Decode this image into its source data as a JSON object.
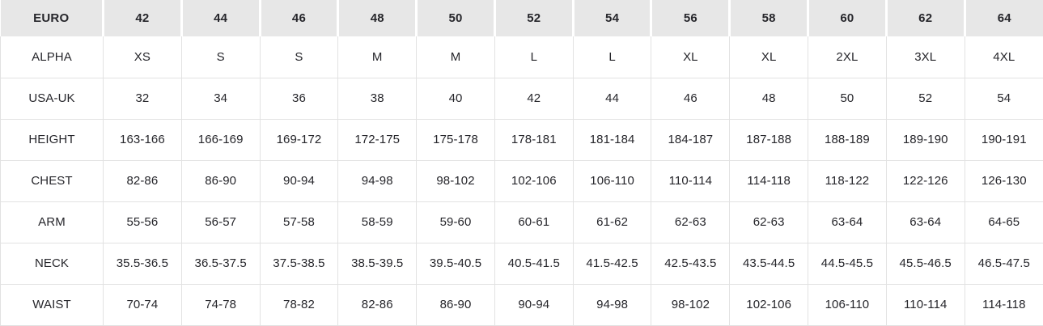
{
  "size_chart": {
    "header": {
      "label": "EURO",
      "values": [
        "42",
        "44",
        "46",
        "48",
        "50",
        "52",
        "54",
        "56",
        "58",
        "60",
        "62",
        "64"
      ]
    },
    "rows": [
      {
        "label": "ALPHA",
        "values": [
          "XS",
          "S",
          "S",
          "M",
          "M",
          "L",
          "L",
          "XL",
          "XL",
          "2XL",
          "3XL",
          "4XL"
        ]
      },
      {
        "label": "USA-UK",
        "values": [
          "32",
          "34",
          "36",
          "38",
          "40",
          "42",
          "44",
          "46",
          "48",
          "50",
          "52",
          "54"
        ]
      },
      {
        "label": "HEIGHT",
        "values": [
          "163-166",
          "166-169",
          "169-172",
          "172-175",
          "175-178",
          "178-181",
          "181-184",
          "184-187",
          "187-188",
          "188-189",
          "189-190",
          "190-191"
        ]
      },
      {
        "label": "CHEST",
        "values": [
          "82-86",
          "86-90",
          "90-94",
          "94-98",
          "98-102",
          "102-106",
          "106-110",
          "110-114",
          "114-118",
          "118-122",
          "122-126",
          "126-130"
        ]
      },
      {
        "label": "ARM",
        "values": [
          "55-56",
          "56-57",
          "57-58",
          "58-59",
          "59-60",
          "60-61",
          "61-62",
          "62-63",
          "62-63",
          "63-64",
          "63-64",
          "64-65"
        ]
      },
      {
        "label": "NECK",
        "values": [
          "35.5-36.5",
          "36.5-37.5",
          "37.5-38.5",
          "38.5-39.5",
          "39.5-40.5",
          "40.5-41.5",
          "41.5-42.5",
          "42.5-43.5",
          "43.5-44.5",
          "44.5-45.5",
          "45.5-46.5",
          "46.5-47.5"
        ]
      },
      {
        "label": "WAIST",
        "values": [
          "70-74",
          "74-78",
          "78-82",
          "82-86",
          "86-90",
          "90-94",
          "94-98",
          "98-102",
          "102-106",
          "106-110",
          "110-114",
          "114-118"
        ]
      }
    ],
    "colors": {
      "header_bg": "#e7e7e7",
      "border": "#e2e2e2",
      "text": "#26262b",
      "separator": "#ffffff"
    }
  }
}
